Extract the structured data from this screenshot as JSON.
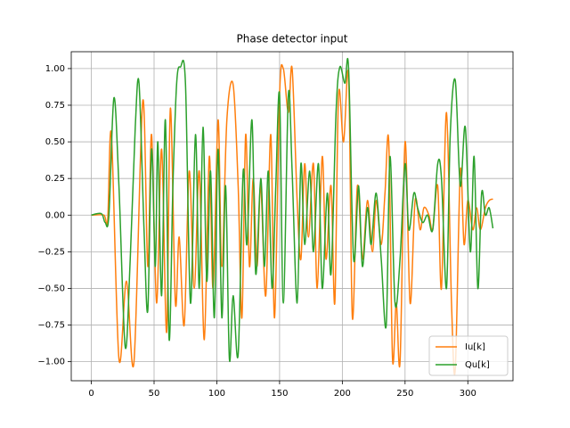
{
  "chart_data": {
    "type": "line",
    "title": "Phase detector input",
    "xlim": [
      -16,
      336
    ],
    "ylim": [
      -1.13,
      1.115
    ],
    "xticks": [
      0,
      50,
      100,
      150,
      200,
      250,
      300
    ],
    "yticks": [
      {
        "value": -1,
        "label": "−1.00"
      },
      {
        "value": -0.75,
        "label": "−0.75"
      },
      {
        "value": -0.5,
        "label": "−0.50"
      },
      {
        "value": -0.25,
        "label": "−0.25"
      },
      {
        "value": 0,
        "label": "0.00"
      },
      {
        "value": 0.25,
        "label": "0.25"
      },
      {
        "value": 0.5,
        "label": "0.50"
      },
      {
        "value": 0.75,
        "label": "0.75"
      },
      {
        "value": 1,
        "label": "1.00"
      }
    ],
    "grid": true,
    "legend": "lower right",
    "series": [
      {
        "name": "Iu[k]",
        "color": "#ff7f0e",
        "x": [
          0,
          10,
          13,
          16,
          22,
          28,
          34,
          41,
          45,
          48,
          52,
          56,
          60,
          63,
          67,
          70,
          74,
          78,
          82,
          86,
          90,
          94,
          97,
          101,
          104,
          108,
          113,
          117,
          120,
          123,
          126,
          129,
          132,
          135,
          139,
          143,
          146,
          150,
          153,
          157,
          160,
          164,
          167,
          170,
          173,
          177,
          180,
          184,
          187,
          191,
          194,
          197,
          201,
          205,
          208,
          212,
          216,
          220,
          224,
          227,
          231,
          234,
          237,
          240,
          243,
          246,
          250,
          254,
          258,
          262,
          265,
          269,
          272,
          276,
          279,
          283,
          287,
          290,
          294,
          297,
          300,
          304,
          307,
          310,
          314,
          317,
          320
        ],
        "values": [
          0,
          0,
          -0.04,
          0.55,
          -0.98,
          -0.45,
          -1.0,
          0.78,
          -0.35,
          0.55,
          -0.6,
          0.45,
          -0.8,
          0.73,
          -0.6,
          -0.15,
          -0.75,
          0.3,
          -0.5,
          0.3,
          -0.85,
          0.4,
          -0.5,
          0.65,
          -0.35,
          0.65,
          0.89,
          0.2,
          -0.7,
          0.55,
          -0.35,
          0.25,
          -0.35,
          0.2,
          -0.55,
          0.55,
          -0.7,
          0.82,
          1.0,
          0.7,
          1.0,
          0.1,
          -0.3,
          0.35,
          -0.15,
          0.35,
          -0.5,
          0.4,
          -0.3,
          0.2,
          -0.6,
          0.82,
          0.5,
          0.95,
          -0.7,
          0.2,
          -0.3,
          0.1,
          -0.25,
          0.1,
          -0.2,
          0.15,
          0.5,
          -0.98,
          -0.6,
          -1.0,
          0.5,
          -0.6,
          0.1,
          -0.1,
          0.05,
          0.0,
          -0.1,
          0.2,
          -0.5,
          0.7,
          -0.6,
          -1.05,
          0.3,
          -0.2,
          0.1,
          -0.1,
          0.05,
          -0.1,
          0.05,
          0.1,
          0.11
        ]
      },
      {
        "name": "Qu[k]",
        "color": "#2ca02c",
        "x": [
          0,
          8,
          11,
          14,
          18,
          22,
          27,
          31,
          35,
          38,
          42,
          45,
          48,
          51,
          53,
          56,
          59,
          62,
          65,
          68,
          71,
          75,
          79,
          83,
          86,
          89,
          92,
          95,
          98,
          101,
          104,
          107,
          110,
          113,
          117,
          121,
          124,
          128,
          131,
          135,
          138,
          141,
          144,
          147,
          150,
          153,
          157,
          160,
          164,
          167,
          170,
          174,
          177,
          181,
          184,
          188,
          191,
          195,
          198,
          202,
          205,
          209,
          213,
          216,
          220,
          223,
          227,
          231,
          235,
          238,
          242,
          246,
          250,
          253,
          257,
          260,
          264,
          268,
          272,
          276,
          279,
          283,
          286,
          290,
          294,
          298,
          302,
          305,
          308,
          311,
          314,
          317,
          320
        ],
        "values": [
          0,
          0.01,
          -0.05,
          0.0,
          0.8,
          0.2,
          -0.9,
          -0.3,
          0.6,
          0.9,
          -0.1,
          -0.65,
          0.45,
          -0.35,
          0.5,
          -0.55,
          0.65,
          -0.85,
          0.2,
          0.9,
          1.01,
          0.9,
          -0.6,
          0.55,
          -0.5,
          0.6,
          -0.45,
          0.3,
          -0.7,
          0.45,
          -0.7,
          0.2,
          -0.98,
          -0.55,
          -0.95,
          0.3,
          -0.2,
          0.65,
          -0.4,
          0.25,
          -0.35,
          0.3,
          -0.5,
          0.2,
          0.82,
          -0.6,
          0.82,
          0.3,
          -0.6,
          0.35,
          -0.2,
          0.3,
          -0.25,
          0.35,
          -0.5,
          0.15,
          -0.4,
          0.7,
          1.01,
          0.9,
          1.0,
          -0.3,
          0.2,
          -0.35,
          0.05,
          -0.2,
          0.15,
          -0.3,
          -0.75,
          0.4,
          -0.6,
          -0.3,
          0.35,
          -0.1,
          0.15,
          0.05,
          -0.05,
          0.0,
          -0.1,
          0.35,
          0.25,
          -0.5,
          0.55,
          0.92,
          0.2,
          0.6,
          -0.25,
          0.4,
          -0.5,
          0.15,
          0.0,
          0.05,
          -0.09
        ]
      }
    ]
  }
}
